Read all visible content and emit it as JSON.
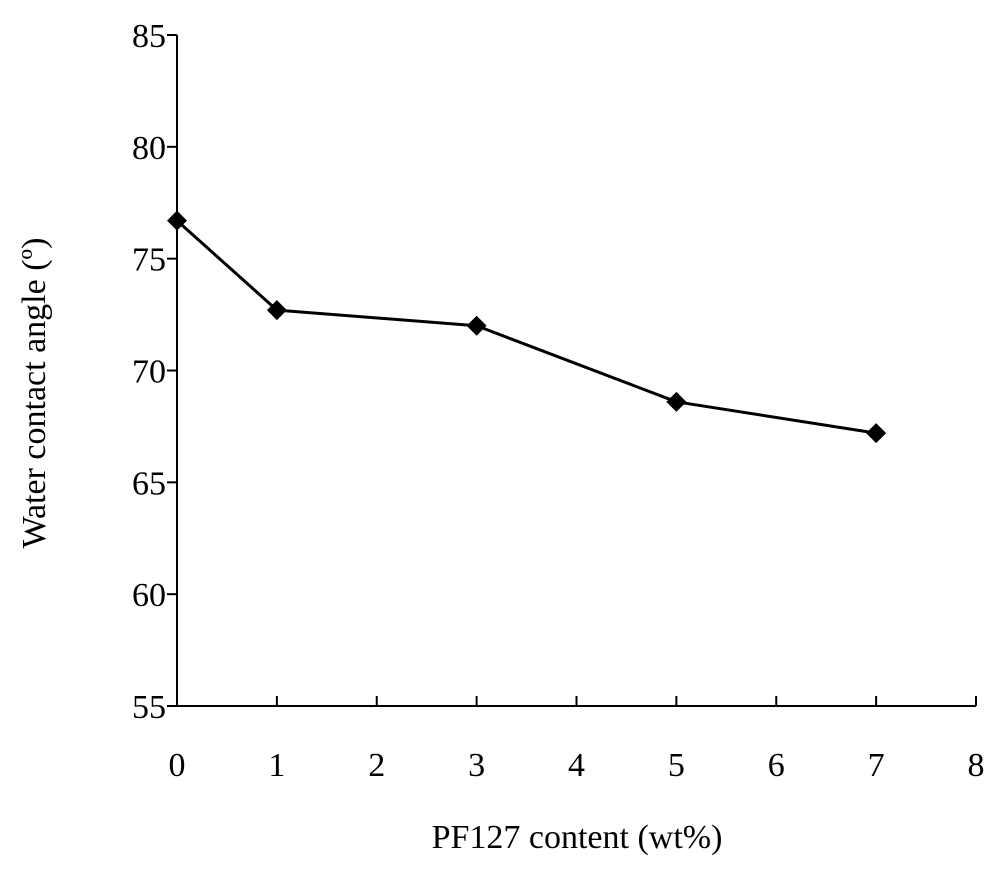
{
  "chart_data": {
    "type": "line",
    "title": "",
    "xlabel": "PF127 content (wt%)",
    "ylabel": "Water contact angle (º)",
    "xlim": [
      0,
      8
    ],
    "ylim": [
      55,
      85
    ],
    "x_ticks": [
      0,
      1,
      2,
      3,
      4,
      5,
      6,
      7,
      8
    ],
    "y_ticks": [
      55,
      60,
      65,
      70,
      75,
      80,
      85
    ],
    "grid": false,
    "legend": "none",
    "series": [
      {
        "x": [
          0,
          1,
          3,
          5,
          7
        ],
        "y": [
          76.7,
          72.7,
          72.0,
          68.6,
          67.2
        ],
        "color": "#000000",
        "marker": "diamond"
      }
    ]
  }
}
